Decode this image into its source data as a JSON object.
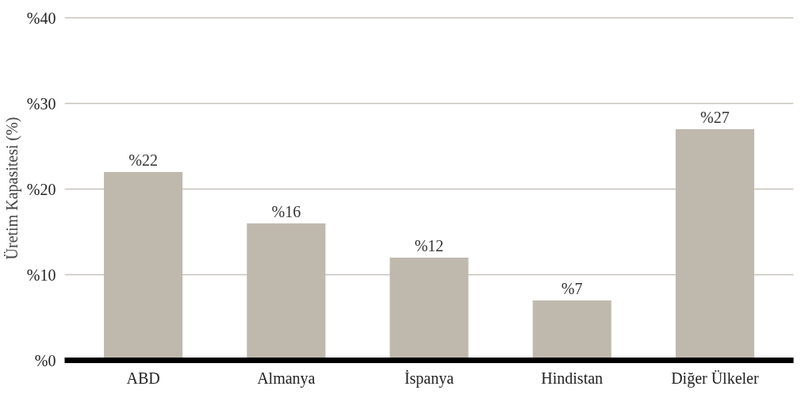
{
  "chart_data": {
    "type": "bar",
    "ylabel": "Üretim Kapasitesi (%)",
    "categories": [
      "ABD",
      "Almanya",
      "İspanya",
      "Hindistan",
      "Diğer Ülkeler"
    ],
    "values": [
      22,
      16,
      12,
      7,
      27
    ],
    "value_labels": [
      "%22",
      "%16",
      "%12",
      "%7",
      "%27"
    ],
    "color": "#bfb8ad",
    "ylim": [
      0,
      40
    ],
    "yticks": [
      {
        "value": 0,
        "label": "%0"
      },
      {
        "value": 10,
        "label": "%10"
      },
      {
        "value": 20,
        "label": "%20"
      },
      {
        "value": 30,
        "label": "%30"
      },
      {
        "value": 40,
        "label": "%40"
      }
    ],
    "grid": "y"
  }
}
